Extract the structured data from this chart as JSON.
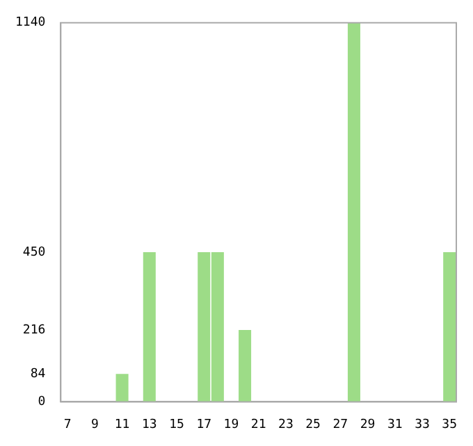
{
  "chart_data": {
    "type": "bar",
    "categories": [
      "7",
      null,
      "9",
      null,
      "11",
      null,
      "13",
      null,
      "15",
      null,
      "17",
      null,
      "19",
      null,
      "21",
      null,
      "23",
      null,
      "25",
      null,
      "27",
      null,
      "29",
      null,
      "31",
      null,
      "33",
      null,
      "35"
    ],
    "values": [
      0,
      0,
      0,
      0,
      84,
      0,
      450,
      0,
      0,
      0,
      450,
      450,
      0,
      216,
      0,
      0,
      0,
      0,
      0,
      0,
      0,
      1140,
      0,
      0,
      0,
      0,
      0,
      0,
      450
    ],
    "color": "#9ddc87",
    "ylim": [
      0,
      1140
    ],
    "yticks": [
      0,
      84,
      216,
      450,
      1140
    ],
    "grid": false,
    "legend": false
  }
}
